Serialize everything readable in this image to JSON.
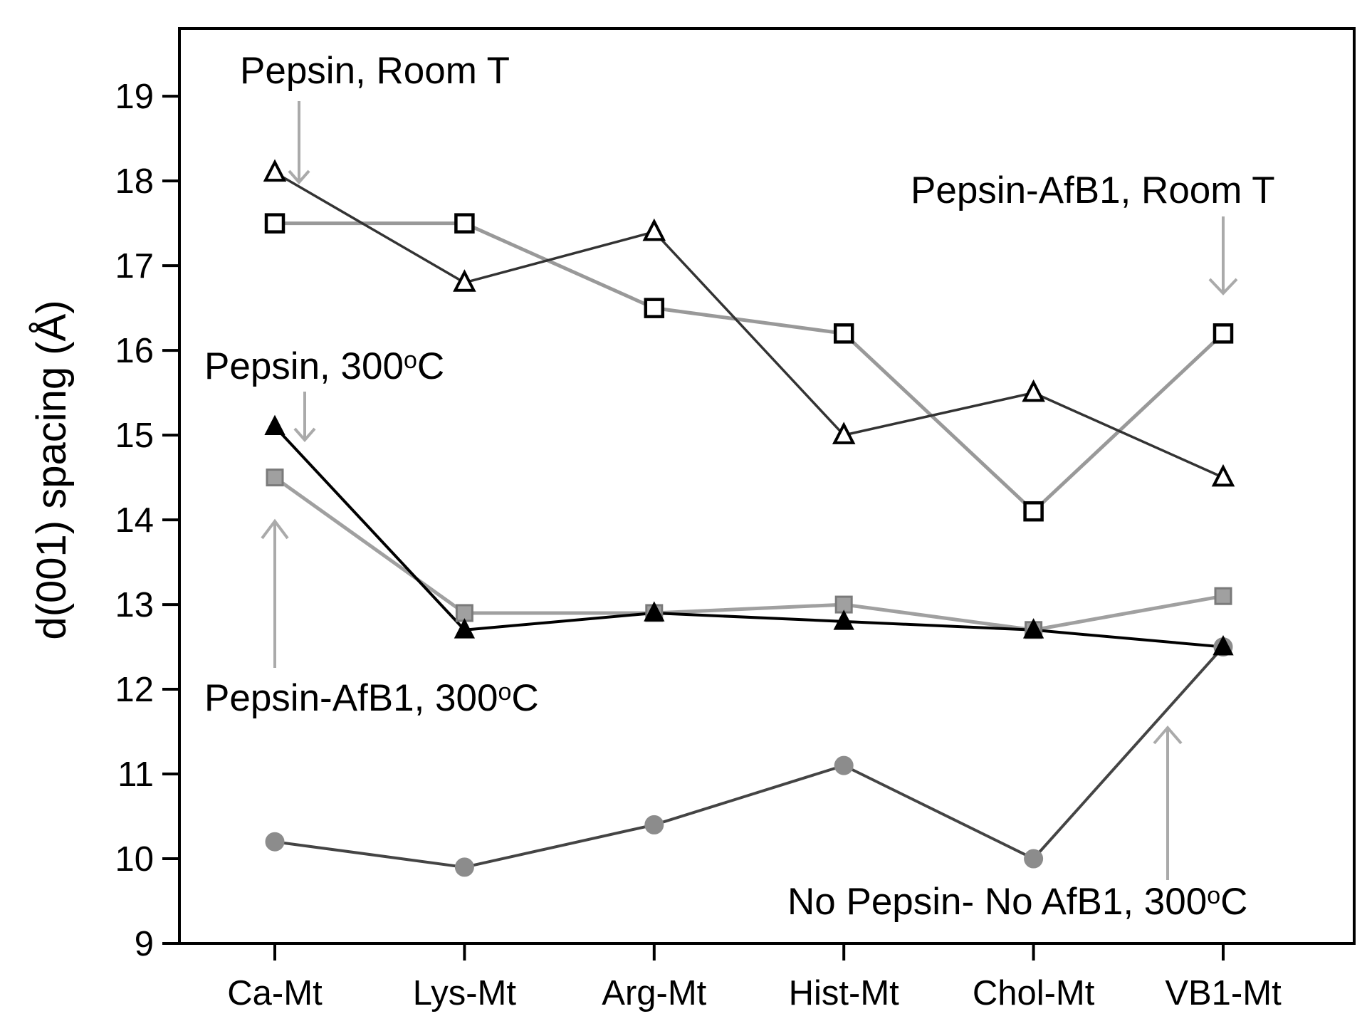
{
  "chart_data": {
    "type": "line",
    "title": "",
    "xlabel": "",
    "ylabel": "d(001) spacing (Å)",
    "categories": [
      "Ca-Mt",
      "Lys-Mt",
      "Arg-Mt",
      "Hist-Mt",
      "Chol-Mt",
      "VB1-Mt"
    ],
    "ylim": [
      9,
      19.8
    ],
    "yticks": [
      9,
      10,
      11,
      12,
      13,
      14,
      15,
      16,
      17,
      18,
      19
    ],
    "grid": false,
    "series": [
      {
        "name": "Pepsin, Room T",
        "marker": "open-triangle",
        "line_color": "#333333",
        "marker_fill": "#ffffff",
        "marker_stroke": "#000000",
        "values": [
          18.1,
          16.8,
          17.4,
          15.0,
          15.5,
          14.5
        ]
      },
      {
        "name": "Pepsin-AfB1, Room T",
        "marker": "open-square",
        "line_color": "#999999",
        "marker_fill": "#ffffff",
        "marker_stroke": "#000000",
        "values": [
          17.5,
          17.5,
          16.5,
          16.2,
          14.1,
          16.2
        ]
      },
      {
        "name": "Pepsin, 300oC",
        "marker": "filled-triangle",
        "line_color": "#000000",
        "marker_fill": "#000000",
        "marker_stroke": "#000000",
        "values": [
          15.1,
          12.7,
          12.9,
          12.8,
          12.7,
          12.5
        ]
      },
      {
        "name": "Pepsin-AfB1, 300oC",
        "marker": "filled-square",
        "line_color": "#a0a0a0",
        "marker_fill": "#a0a0a0",
        "marker_stroke": "#7a7a7a",
        "values": [
          14.5,
          12.9,
          12.9,
          13.0,
          12.7,
          13.1
        ]
      },
      {
        "name": "No Pepsin- No AfB1, 300oC",
        "marker": "circle",
        "line_color": "#444444",
        "marker_fill": "#8c8c8c",
        "marker_stroke": "#8c8c8c",
        "values": [
          10.2,
          9.9,
          10.4,
          11.1,
          10.0,
          12.5
        ]
      }
    ],
    "annotations": {
      "pepsin_room": {
        "label": "Pepsin, Room T",
        "arrow_color": "#aaaaaa"
      },
      "afb1_room": {
        "label": "Pepsin-AfB1, Room T",
        "arrow_color": "#aaaaaa"
      },
      "pepsin_300": {
        "label_main": "Pepsin, 300",
        "label_sup": "o",
        "label_end": "C",
        "arrow_color": "#aaaaaa"
      },
      "afb1_300": {
        "label_main": "Pepsin-AfB1, 300",
        "label_sup": "o",
        "label_end": "C",
        "arrow_color": "#aaaaaa"
      },
      "none_300": {
        "label_main": "No Pepsin- No AfB1, 300",
        "label_sup": "o",
        "label_end": "C",
        "arrow_color": "#aaaaaa"
      }
    }
  }
}
